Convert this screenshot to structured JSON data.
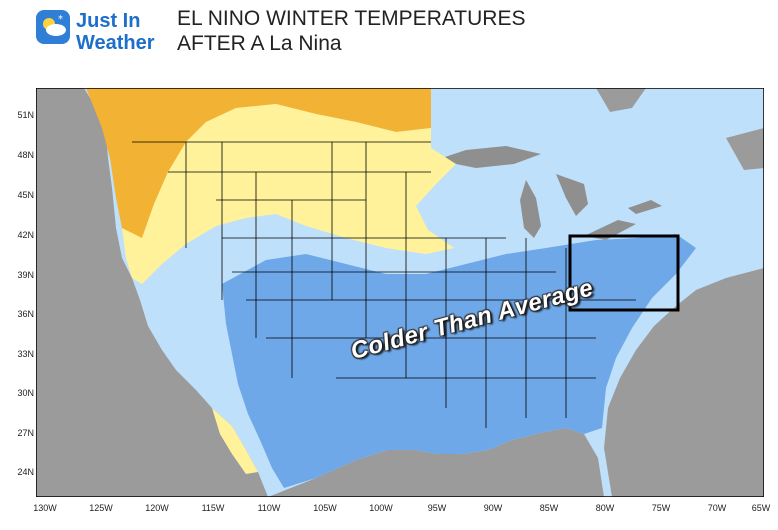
{
  "logo": {
    "line1": "Just In",
    "line2": "Weather"
  },
  "title": {
    "line1": "EL NINO WINTER TEMPERATURES",
    "line2": "AFTER A La Nina"
  },
  "map": {
    "callout": "Colder Than Average",
    "lat_labels": [
      "51N",
      "48N",
      "45N",
      "42N",
      "39N",
      "36N",
      "33N",
      "30N",
      "27N",
      "24N"
    ],
    "lon_labels": [
      "130W",
      "125W",
      "120W",
      "115W",
      "110W",
      "105W",
      "100W",
      "95W",
      "90W",
      "85W",
      "80W",
      "75W",
      "70W",
      "65W"
    ],
    "colors": {
      "warm": "#f2b233",
      "slightly_warm": "#fff29a",
      "slightly_cold": "#bfe0fb",
      "cold": "#6fa8e8",
      "land_gray": "#9b9b9b",
      "water_gray": "#8f8f8f"
    },
    "highlight_box": "mid-atlantic"
  }
}
